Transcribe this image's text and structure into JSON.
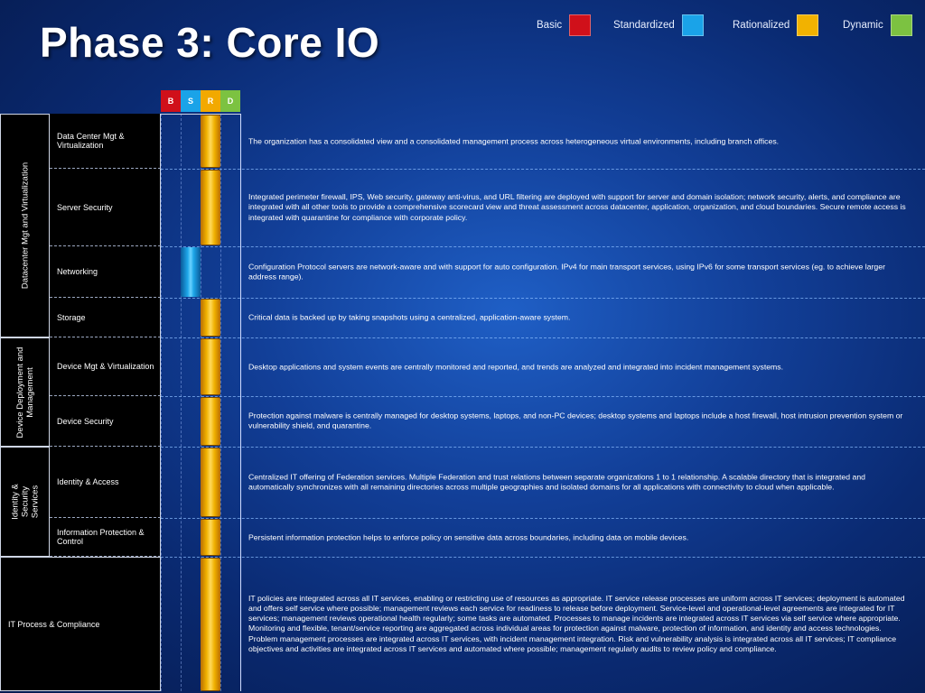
{
  "title": "Phase 3: Core IO",
  "legend": [
    {
      "label": "Basic",
      "color": "#d0101a"
    },
    {
      "label": "Standardized",
      "color": "#1aa3e8"
    },
    {
      "label": "Rationalized",
      "color": "#f2b200"
    },
    {
      "label": "Dynamic",
      "color": "#7cc241"
    }
  ],
  "phase_headers": [
    {
      "letter": "B",
      "color": "#d0101a"
    },
    {
      "letter": "S",
      "color": "#1aa3e8"
    },
    {
      "letter": "R",
      "color": "#f2a900"
    },
    {
      "letter": "D",
      "color": "#7cc241"
    }
  ],
  "categories": {
    "datacenter": "Datacenter Mgt and Virtualization",
    "device": "Device Deployment and Management",
    "identity": "Identity & Security Services",
    "it_process": "IT Process & Compliance"
  },
  "rows": [
    {
      "name": "Data Center Mgt & Virtualization",
      "level": "R",
      "description": "The organization has a consolidated view and a consolidated management process across heterogeneous virtual environments, including branch offices."
    },
    {
      "name": "Server Security",
      "level": "R",
      "description": "Integrated perimeter firewall, IPS, Web security, gateway anti-virus, and URL filtering are deployed with support for server and domain isolation; network security, alerts, and compliance are integrated with all other tools to provide a comprehensive scorecard view and threat assessment across datacenter, application, organization, and cloud boundaries. Secure remote access is integrated with quarantine for compliance with corporate policy."
    },
    {
      "name": "Networking",
      "level": "S",
      "description": "Configuration Protocol servers are network-aware and with support for auto configuration. IPv4 for main transport services, using IPv6 for some transport services (eg. to achieve larger address range)."
    },
    {
      "name": "Storage",
      "level": "R",
      "description": "Critical data is backed up by taking snapshots using a centralized, application-aware system."
    },
    {
      "name": "Device Mgt & Virtualization",
      "level": "R",
      "description": "Desktop applications and system events are centrally monitored and reported, and trends are analyzed and integrated into incident management systems."
    },
    {
      "name": "Device Security",
      "level": "R",
      "description": "Protection against malware is centrally managed for desktop systems, laptops, and non-PC devices; desktop systems and laptops include a host firewall, host intrusion prevention system or vulnerability shield, and quarantine."
    },
    {
      "name": "Identity & Access",
      "level": "R",
      "description": "Centralized IT offering of Federation services. Multiple Federation and trust relations between separate organizations 1 to 1 relationship.   A scalable directory that is integrated and automatically synchronizes with all remaining directories across multiple geographies and isolated domains for all applications with connectivity to cloud when applicable."
    },
    {
      "name": "Information Protection & Control",
      "level": "R",
      "description": "Persistent information protection helps to enforce policy on sensitive data across boundaries, including data on mobile devices."
    },
    {
      "name": "IT Process & Compliance",
      "level": "R",
      "description": "IT policies are integrated across all IT services, enabling or restricting use of resources as appropriate. IT service release processes are uniform across IT services; deployment is automated and offers self service where possible; management reviews each service for readiness to release before deployment. Service-level and operational-level agreements are integrated for IT services; management reviews operational health regularly; some tasks are automated. Processes to manage incidents are integrated across IT services via self service where appropriate. Monitoring and flexible, tenant/service reporting are aggregated across individual areas for protection against malware, protection of information, and identity and access technologies. Problem management processes are integrated across IT services, with incident management integration.   Risk and vulnerability analysis is integrated across all IT services; IT compliance objectives and activities are integrated across IT services and automated where possible; management regularly audits to review policy and compliance."
    }
  ]
}
